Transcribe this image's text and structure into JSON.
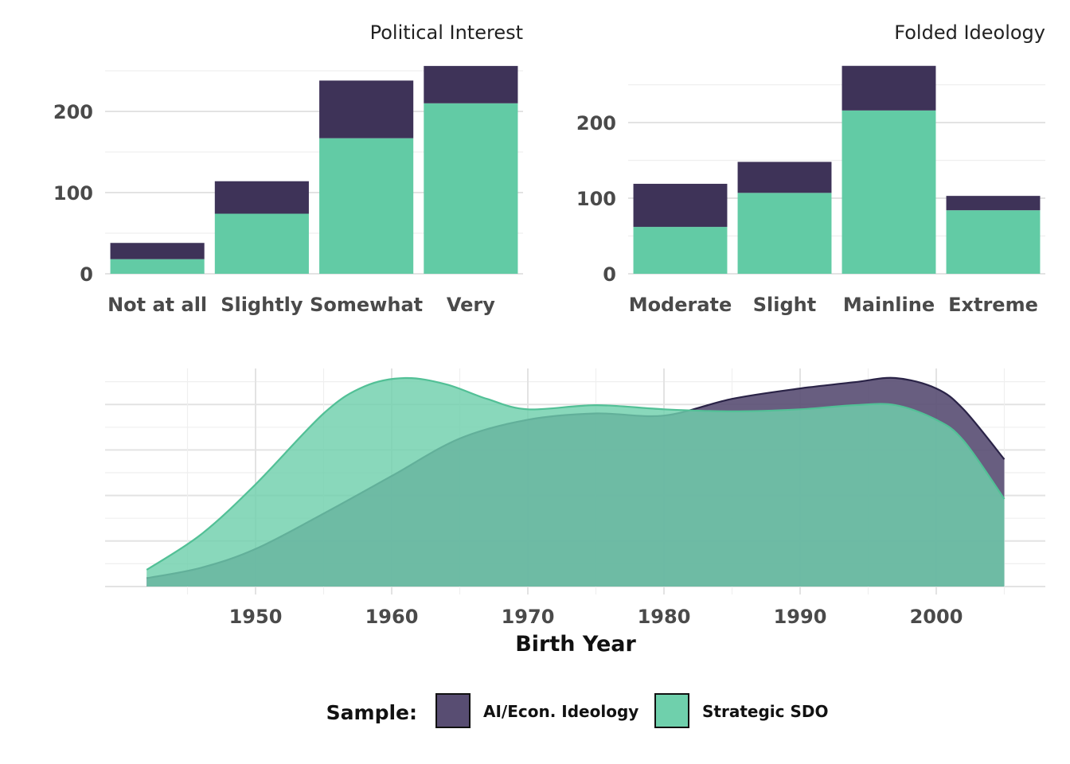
{
  "colors": {
    "ai_econ": "#3e3358",
    "strategic_sdo": "#62cba5",
    "ai_econ_density": "#584d72",
    "strategic_sdo_density": "#6fd0ac"
  },
  "legend": {
    "title": "Sample:",
    "items": [
      "AI/Econ. Ideology",
      "Strategic SDO"
    ]
  },
  "chart_data": [
    {
      "type": "bar",
      "stacked": true,
      "title": "Political Interest",
      "xlabel": "",
      "ylabel": "",
      "categories": [
        "Not at all",
        "Slightly",
        "Somewhat",
        "Very"
      ],
      "series": [
        {
          "name": "Strategic SDO",
          "values": [
            18,
            74,
            167,
            210
          ]
        },
        {
          "name": "AI/Econ. Ideology",
          "values": [
            20,
            40,
            71,
            46
          ]
        }
      ],
      "yticks": [
        0,
        100,
        200
      ],
      "ylim": [
        0,
        250
      ],
      "grid": true,
      "legend": "bottom"
    },
    {
      "type": "bar",
      "stacked": true,
      "title": "Folded Ideology",
      "xlabel": "",
      "ylabel": "",
      "categories": [
        "Moderate",
        "Slight",
        "Mainline",
        "Extreme"
      ],
      "series": [
        {
          "name": "Strategic SDO",
          "values": [
            62,
            107,
            216,
            84
          ]
        },
        {
          "name": "AI/Econ. Ideology",
          "values": [
            57,
            41,
            59,
            19
          ]
        }
      ],
      "yticks": [
        0,
        100,
        200
      ],
      "ylim": [
        0,
        275
      ],
      "grid": true,
      "legend": "bottom"
    },
    {
      "type": "area",
      "title": "",
      "xlabel": "Birth Year",
      "ylabel": "",
      "xlim": [
        1940,
        2008
      ],
      "xticks": [
        1950,
        1960,
        1970,
        1980,
        1990,
        2000
      ],
      "ylim": [
        0,
        1
      ],
      "grid": true,
      "legend": "bottom",
      "series": [
        {
          "name": "AI/Econ. Ideology",
          "x": [
            1942,
            1946,
            1950,
            1955,
            1960,
            1965,
            1970,
            1975,
            1980,
            1985,
            1990,
            1994,
            1997,
            2000,
            2002,
            2005
          ],
          "values": [
            0.04,
            0.09,
            0.18,
            0.35,
            0.53,
            0.71,
            0.8,
            0.83,
            0.82,
            0.9,
            0.95,
            0.98,
            1.0,
            0.95,
            0.85,
            0.61
          ]
        },
        {
          "name": "Strategic SDO",
          "x": [
            1942,
            1946,
            1950,
            1955,
            1958,
            1961,
            1964,
            1967,
            1970,
            1975,
            1980,
            1985,
            1990,
            1994,
            1997,
            2000,
            2002,
            2005
          ],
          "values": [
            0.08,
            0.25,
            0.49,
            0.83,
            0.96,
            1.0,
            0.97,
            0.9,
            0.85,
            0.87,
            0.85,
            0.84,
            0.85,
            0.87,
            0.87,
            0.8,
            0.7,
            0.42
          ]
        }
      ]
    }
  ]
}
